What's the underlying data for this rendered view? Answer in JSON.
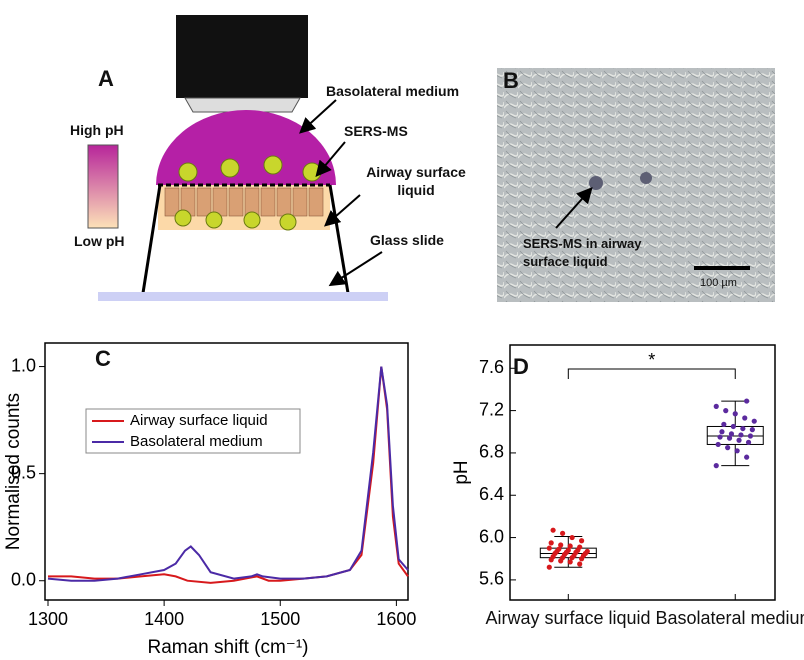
{
  "panel_a": {
    "label": "A",
    "scale_high": "High pH",
    "scale_low": "Low pH",
    "labels": [
      "Basolateral medium",
      "SERS-MS",
      "Airway surface liquid",
      "Glass slide"
    ]
  },
  "panel_b": {
    "label": "B",
    "annotation": "SERS-MS in airway surface liquid",
    "scale_bar": "100 µm"
  },
  "chart_data": [
    {
      "type": "line",
      "panel": "C",
      "xlabel": "Raman shift (cm⁻¹)",
      "ylabel": "Normalised counts",
      "xlim": [
        1300,
        1610
      ],
      "ylim": [
        -0.09,
        1.11
      ],
      "xticks": [
        1300,
        1400,
        1500,
        1600
      ],
      "yticks": [
        {
          "value": 0,
          "label": "0.0"
        },
        0.5,
        {
          "value": 1,
          "label": "1.0"
        }
      ],
      "series": [
        {
          "name": "Airway surface liquid",
          "color": "#d7191c",
          "x": [
            1300,
            1320,
            1340,
            1360,
            1380,
            1400,
            1410,
            1420,
            1440,
            1460,
            1480,
            1490,
            1500,
            1520,
            1540,
            1560,
            1570,
            1580,
            1587,
            1592,
            1597,
            1602,
            1610
          ],
          "values": [
            0.02,
            0.02,
            0.01,
            0.01,
            0.02,
            0.03,
            0.02,
            0.0,
            -0.01,
            0.0,
            0.02,
            0.0,
            0.0,
            0.01,
            0.02,
            0.05,
            0.12,
            0.55,
            1.0,
            0.8,
            0.3,
            0.08,
            0.02
          ]
        },
        {
          "name": "Basolateral medium",
          "color": "#4b2aa6",
          "x": [
            1300,
            1320,
            1340,
            1360,
            1380,
            1400,
            1410,
            1418,
            1423,
            1430,
            1440,
            1460,
            1475,
            1480,
            1485,
            1500,
            1520,
            1540,
            1560,
            1570,
            1580,
            1587,
            1592,
            1597,
            1602,
            1610
          ],
          "values": [
            0.01,
            0.0,
            0.0,
            0.01,
            0.03,
            0.05,
            0.08,
            0.14,
            0.16,
            0.12,
            0.04,
            0.01,
            0.02,
            0.03,
            0.02,
            0.01,
            0.01,
            0.02,
            0.05,
            0.14,
            0.6,
            1.0,
            0.82,
            0.35,
            0.1,
            0.05
          ]
        }
      ]
    },
    {
      "type": "box",
      "panel": "D",
      "ylabel": "pH",
      "categories": [
        "Airway surface liquid",
        "Basolateral medium"
      ],
      "ylim": [
        5.41,
        7.82
      ],
      "yticks": [
        5.6,
        {
          "value": 6,
          "label": "6.0"
        },
        6.4,
        6.8,
        7.2,
        7.6
      ],
      "significance": "*",
      "boxes": [
        {
          "color": "#d7191c",
          "whislo": 5.72,
          "q1": 5.81,
          "median": 5.85,
          "q3": 5.9,
          "whishi": 6.01,
          "points": [
            5.72,
            5.75,
            5.77,
            5.78,
            5.79,
            5.8,
            5.81,
            5.81,
            5.82,
            5.83,
            5.83,
            5.84,
            5.85,
            5.85,
            5.86,
            5.86,
            5.87,
            5.87,
            5.88,
            5.88,
            5.89,
            5.9,
            5.91,
            5.92,
            5.93,
            5.95,
            5.97,
            6.0,
            6.04,
            6.07
          ]
        },
        {
          "color": "#5b2a9e",
          "whislo": 6.68,
          "q1": 6.88,
          "median": 6.96,
          "q3": 7.05,
          "whishi": 7.29,
          "points": [
            6.68,
            6.76,
            6.82,
            6.85,
            6.88,
            6.9,
            6.92,
            6.94,
            6.95,
            6.96,
            6.97,
            6.98,
            7.0,
            7.02,
            7.03,
            7.05,
            7.07,
            7.1,
            7.13,
            7.17,
            7.2,
            7.24,
            7.29
          ]
        }
      ]
    }
  ]
}
